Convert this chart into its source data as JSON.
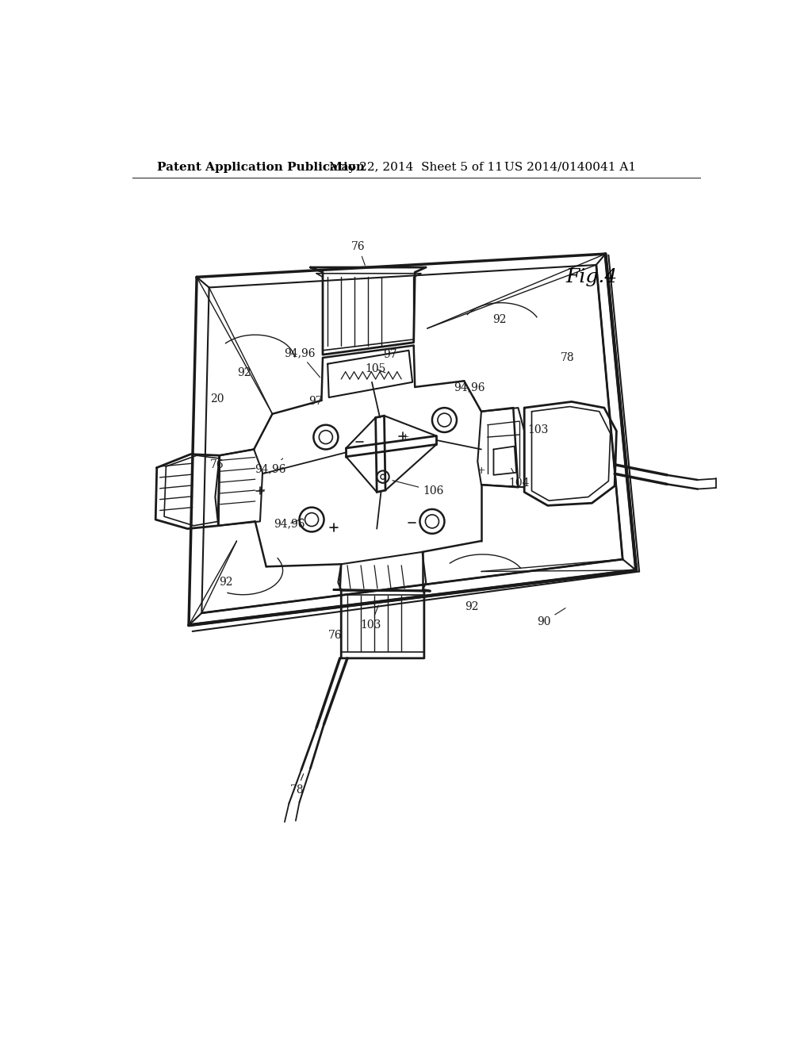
{
  "bg_color": "#ffffff",
  "header_left": "Patent Application Publication",
  "header_mid": "May 22, 2014  Sheet 5 of 11",
  "header_right": "US 2014/0140041 A1",
  "fig_label": "Fig.4",
  "line_color": "#1a1a1a",
  "header_fontsize": 11,
  "fig_label_fontsize": 18,
  "annotation_fontsize": 10
}
